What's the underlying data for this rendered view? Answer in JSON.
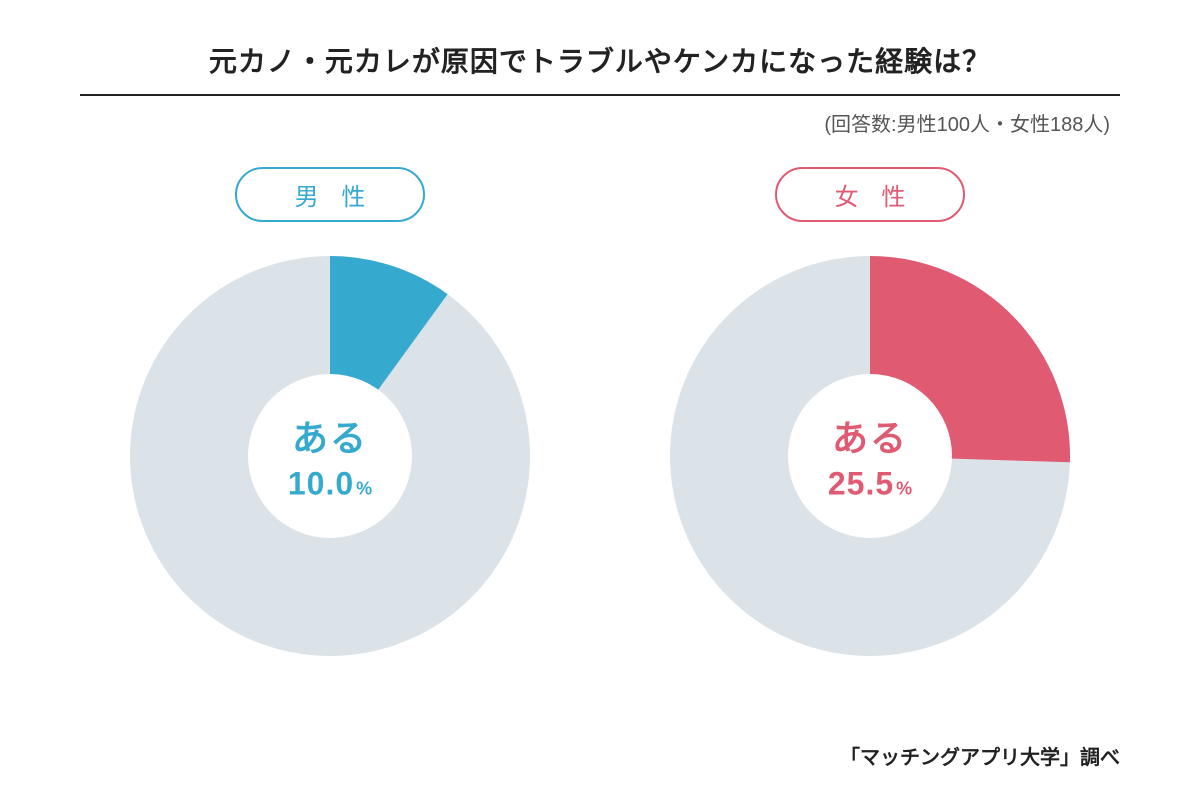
{
  "title": "元カノ・元カレが原因でトラブルやケンカになった経験は？",
  "subtitle": "(回答数:男性100人・女性188人)",
  "source": "「マッチングアプリ大学」調べ",
  "background_color": "#ffffff",
  "charts": {
    "male": {
      "type": "donut",
      "label": "男 性",
      "badge_border_color": "#36a9ce",
      "badge_text_color": "#36a9ce",
      "slice_percent": 10.0,
      "slice_color": "#36a9ce",
      "rest_color": "#dbe3e8",
      "inner_color": "#ffffff",
      "center_text": "ある",
      "center_value": "10.0",
      "center_unit": "%",
      "center_text_color": "#36a9ce",
      "outer_radius": 200,
      "inner_radius": 82,
      "start_angle_deg": -90,
      "label_fontsize": 24,
      "center_text_fontsize": 36,
      "center_value_fontsize": 32
    },
    "female": {
      "type": "donut",
      "label": "女 性",
      "badge_border_color": "#e05a72",
      "badge_text_color": "#e05a72",
      "slice_percent": 25.5,
      "slice_color": "#e05a72",
      "rest_color": "#dbe3e8",
      "inner_color": "#ffffff",
      "center_text": "ある",
      "center_value": "25.5",
      "center_unit": "%",
      "center_text_color": "#e05a72",
      "outer_radius": 200,
      "inner_radius": 82,
      "start_angle_deg": -90,
      "label_fontsize": 24,
      "center_text_fontsize": 36,
      "center_value_fontsize": 32
    }
  }
}
